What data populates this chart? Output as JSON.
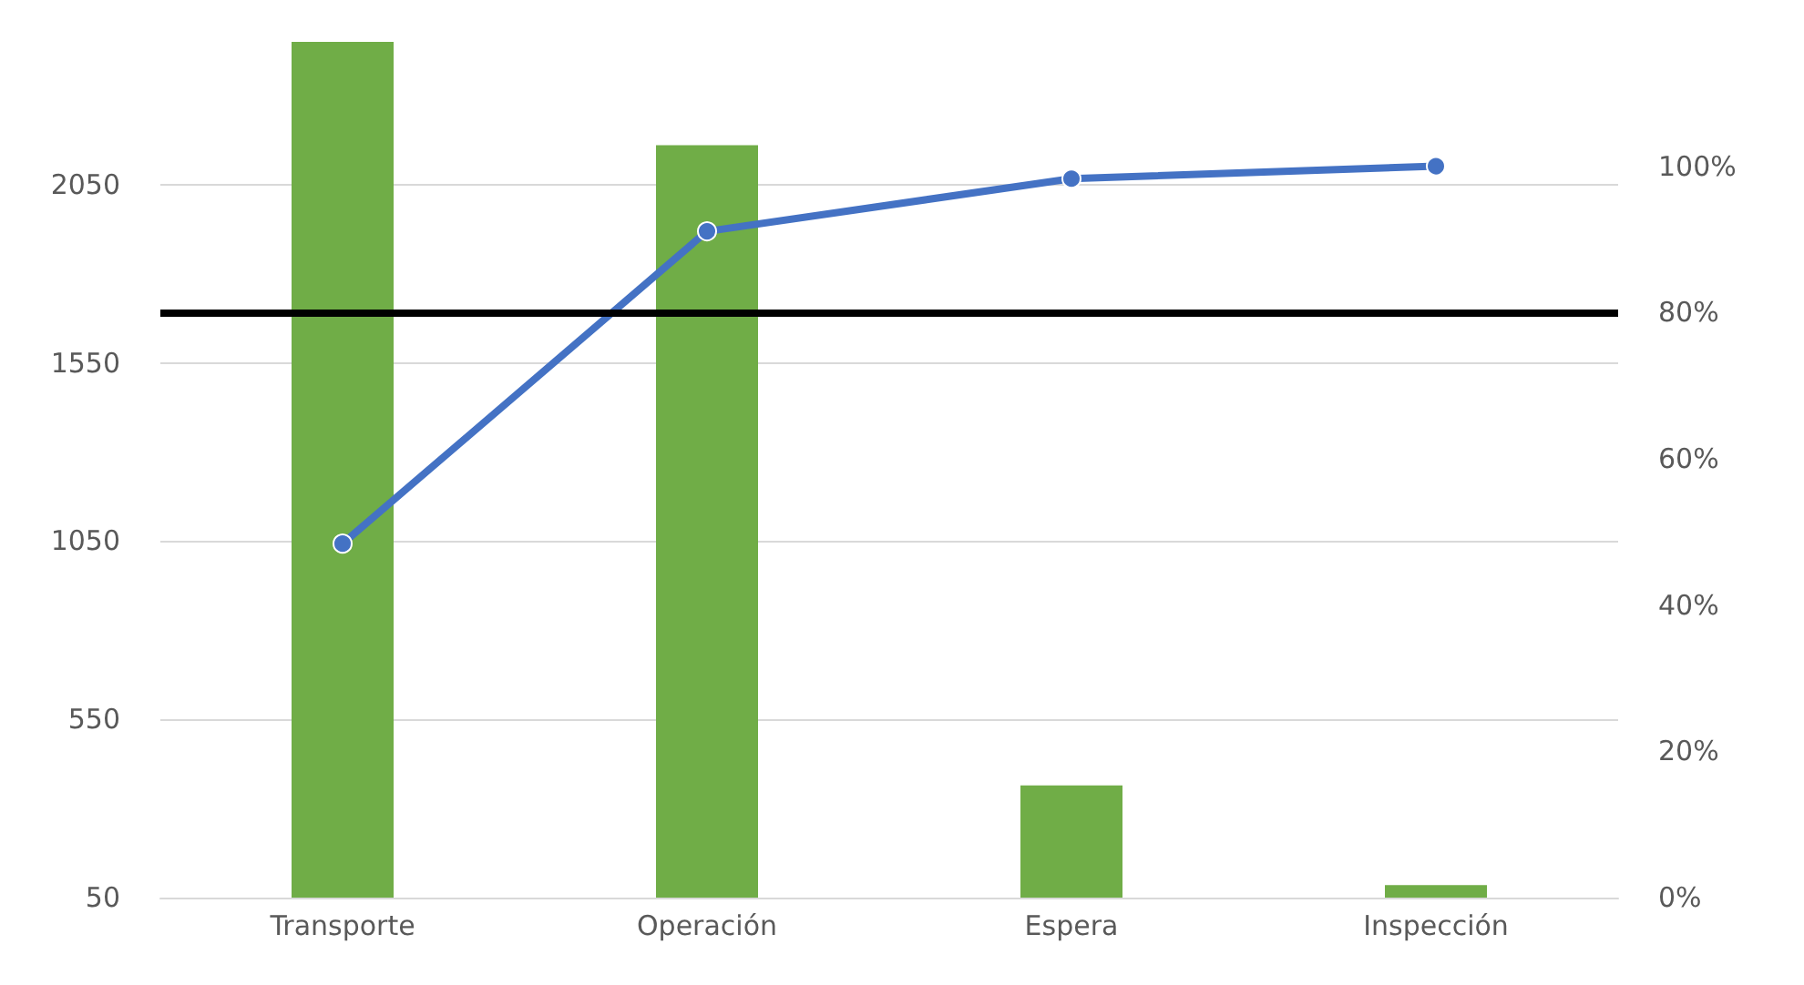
{
  "chart_data": {
    "type": "bar",
    "categories": [
      "Transporte",
      "Operación",
      "Espera",
      "Inspección"
    ],
    "series": [
      {
        "color": "#70ad47",
        "values": [
          2450,
          2160,
          365,
          85
        ]
      },
      {
        "type": "line",
        "color": "#4472c4",
        "axis": "y2",
        "values": [
          48.4,
          91.1,
          98.3,
          100
        ]
      }
    ],
    "ylim": [
      50,
      2450
    ],
    "yticks": [
      50,
      550,
      1050,
      1550,
      2050
    ],
    "y2lim": [
      0,
      117
    ],
    "y2ticks": [
      {
        "value": 0,
        "label": "0%"
      },
      {
        "value": 20,
        "label": "20%"
      },
      {
        "value": 40,
        "label": "40%"
      },
      {
        "value": 60,
        "label": "60%"
      },
      {
        "value": 80,
        "label": "80%"
      },
      {
        "value": 100,
        "label": "100%"
      }
    ],
    "ref_lines": [
      {
        "axis": "y2",
        "value": 80,
        "color": "#000000"
      }
    ],
    "grid": "y",
    "marker": "circle"
  }
}
